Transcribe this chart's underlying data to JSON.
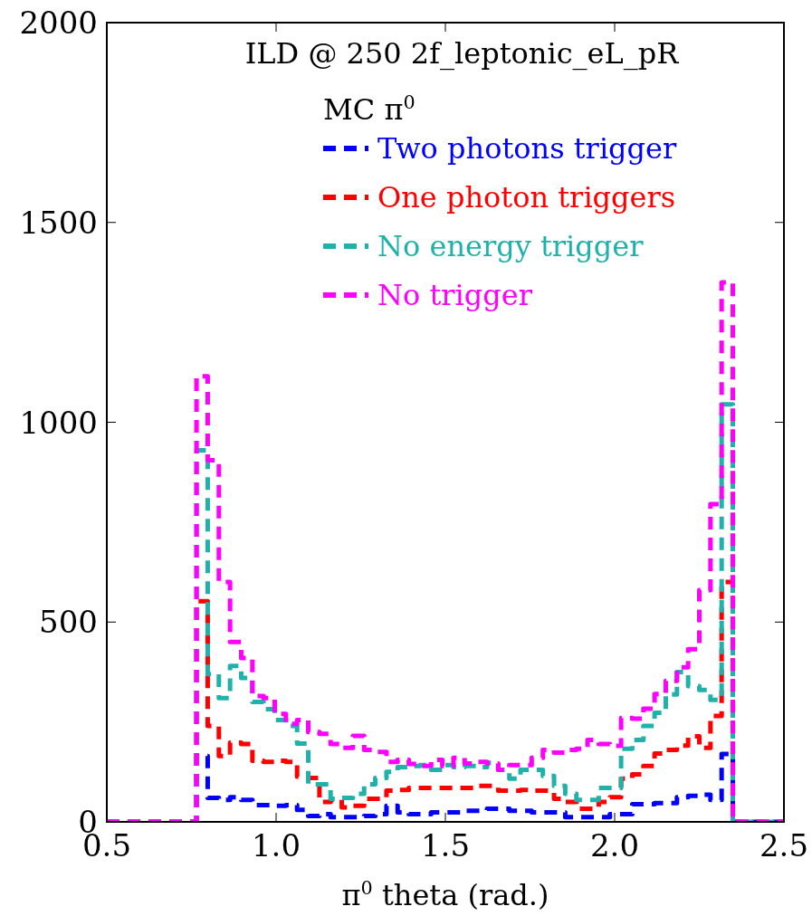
{
  "chart_data": {
    "type": "histogram",
    "title": "ILD @ 250 2f_leptonic_eL_pR",
    "xlabel": "π$^{0}$ theta (rad.)",
    "legend_title": "MC π$^{0}$",
    "bins": [
      0.5,
      0.765,
      0.798,
      0.831,
      0.864,
      0.897,
      0.93,
      0.963,
      0.996,
      1.029,
      1.062,
      1.095,
      1.128,
      1.161,
      1.194,
      1.227,
      1.26,
      1.293,
      1.326,
      1.359,
      1.392,
      1.425,
      1.458,
      1.491,
      1.524,
      1.557,
      1.59,
      1.623,
      1.656,
      1.689,
      1.722,
      1.755,
      1.788,
      1.821,
      1.854,
      1.887,
      1.92,
      1.953,
      1.986,
      2.019,
      2.052,
      2.085,
      2.118,
      2.151,
      2.184,
      2.217,
      2.25,
      2.283,
      2.316,
      2.349,
      2.5
    ],
    "series": [
      {
        "name": "Two photons trigger",
        "color": "#0000ff",
        "values": [
          0,
          165,
          60,
          55,
          62,
          55,
          42,
          42,
          40,
          42,
          30,
          15,
          19,
          12,
          12,
          12,
          15,
          19,
          40,
          24,
          19,
          19,
          24,
          24,
          24,
          28,
          28,
          33,
          33,
          28,
          28,
          24,
          24,
          24,
          12,
          12,
          12,
          12,
          19,
          19,
          44,
          44,
          47,
          47,
          62,
          65,
          68,
          55,
          170,
          0
        ]
      },
      {
        "name": "One photon triggers",
        "color": "#ff0000",
        "values": [
          0,
          552,
          240,
          165,
          198,
          195,
          153,
          150,
          153,
          150,
          113,
          110,
          50,
          55,
          36,
          40,
          58,
          58,
          78,
          80,
          85,
          85,
          85,
          85,
          85,
          85,
          90,
          90,
          78,
          78,
          80,
          78,
          78,
          58,
          50,
          33,
          33,
          50,
          62,
          108,
          119,
          140,
          171,
          180,
          191,
          214,
          185,
          265,
          600,
          0
        ]
      },
      {
        "name": "No energy trigger",
        "color": "#20b2aa",
        "values": [
          0,
          930,
          370,
          310,
          390,
          360,
          300,
          282,
          255,
          240,
          196,
          94,
          94,
          58,
          60,
          70,
          94,
          110,
          125,
          137,
          140,
          142,
          130,
          142,
          137,
          140,
          137,
          148,
          130,
          108,
          130,
          130,
          115,
          90,
          70,
          55,
          55,
          85,
          85,
          183,
          205,
          240,
          273,
          319,
          375,
          340,
          330,
          305,
          1045,
          0
        ]
      },
      {
        "name": "No trigger",
        "color": "#ff00ff",
        "values": [
          0,
          1115,
          905,
          600,
          450,
          410,
          315,
          310,
          270,
          245,
          255,
          225,
          220,
          195,
          185,
          215,
          180,
          175,
          150,
          155,
          145,
          140,
          155,
          140,
          160,
          146,
          150,
          146,
          130,
          142,
          142,
          160,
          180,
          173,
          180,
          183,
          205,
          195,
          190,
          260,
          258,
          283,
          320,
          353,
          387,
          432,
          580,
          795,
          1350,
          0
        ]
      }
    ],
    "xlim": [
      0.5,
      2.5
    ],
    "ylim": [
      0,
      2000
    ],
    "xticks": [
      0.5,
      {
        "value": 1,
        "label": "1.0"
      },
      1.5,
      {
        "value": 2,
        "label": "2.0"
      },
      2.5
    ],
    "yticks": [
      0,
      500,
      1000,
      1500,
      2000
    ],
    "legend": "top right",
    "line_style": "dashed",
    "grid": false
  }
}
